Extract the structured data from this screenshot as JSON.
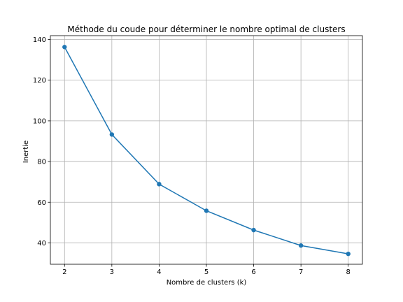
{
  "chart_data": {
    "type": "line",
    "title": "Méthode du coude pour déterminer le nombre optimal de clusters",
    "xlabel": "Nombre de clusters (k)",
    "ylabel": "Inertie",
    "x": [
      2,
      3,
      4,
      5,
      6,
      7,
      8
    ],
    "series": [
      {
        "values": [
          136.3,
          93.3,
          68.9,
          55.8,
          46.3,
          38.7,
          34.6
        ],
        "color": "#1f77b4",
        "marker": "circle"
      }
    ],
    "xlim": [
      1.7,
      8.3
    ],
    "ylim": [
      29.5,
      141.9
    ],
    "xticks": [
      2,
      3,
      4,
      5,
      6,
      7,
      8
    ],
    "yticks": [
      40,
      60,
      80,
      100,
      120,
      140
    ],
    "grid": true
  }
}
